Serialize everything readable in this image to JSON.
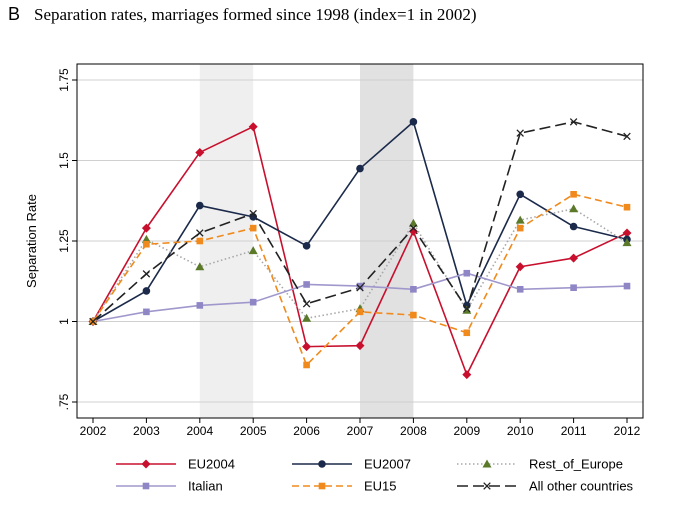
{
  "panel_label": "B",
  "chart_data": {
    "type": "line",
    "title": "Separation rates, marriages formed since 1998 (index=1 in 2002)",
    "xlabel": "",
    "ylabel": "Separation Rate",
    "x": [
      2002,
      2003,
      2004,
      2005,
      2006,
      2007,
      2008,
      2009,
      2010,
      2011,
      2012
    ],
    "x_tick_labels": [
      "2002",
      "2003",
      "2004",
      "2005",
      "2006",
      "2007",
      "2008",
      "2009",
      "2010",
      "2011",
      "2012"
    ],
    "y_ticks": [
      0.75,
      1,
      1.25,
      1.5,
      1.75
    ],
    "y_tick_labels": [
      ".75",
      "1",
      "1.25",
      "1.5",
      "1.75"
    ],
    "xlim": [
      2002,
      2012
    ],
    "ylim": [
      0.75,
      1.75
    ],
    "shaded_periods": [
      {
        "from": 2004,
        "to": 2005,
        "shade": "#efefef"
      },
      {
        "from": 2007,
        "to": 2008,
        "shade": "#e1e1e1"
      }
    ],
    "grid": "horizontal",
    "legend_position": "bottom",
    "series": [
      {
        "name": "EU2004",
        "color": "#c8102e",
        "dash": "solid",
        "marker": "diamond",
        "values": [
          1.0,
          1.29,
          1.525,
          1.605,
          0.922,
          0.925,
          1.28,
          0.835,
          1.17,
          1.197,
          1.275
        ]
      },
      {
        "name": "EU2007",
        "color": "#1b2a4a",
        "dash": "solid",
        "marker": "circle",
        "values": [
          1.0,
          1.095,
          1.36,
          1.325,
          1.235,
          1.475,
          1.62,
          1.05,
          1.395,
          1.295,
          1.255
        ]
      },
      {
        "name": "Rest_of_Europe",
        "color": "#a8a8a8",
        "markerColor": "#5a7a2a",
        "dash": "dotted",
        "marker": "triangle",
        "values": [
          1.0,
          1.255,
          1.17,
          1.22,
          1.01,
          1.04,
          1.305,
          1.035,
          1.315,
          1.35,
          1.245
        ]
      },
      {
        "name": "Italian",
        "color": "#a098cc",
        "markerColor": "#8f86c6",
        "dash": "solid",
        "marker": "square",
        "values": [
          1.0,
          1.03,
          1.05,
          1.06,
          1.115,
          1.11,
          1.1,
          1.15,
          1.1,
          1.105,
          1.11
        ]
      },
      {
        "name": "EU15",
        "color": "#f08a1c",
        "dash": "dashed",
        "marker": "square",
        "values": [
          1.0,
          1.24,
          1.25,
          1.29,
          0.865,
          1.03,
          1.02,
          0.965,
          1.29,
          1.395,
          1.355
        ]
      },
      {
        "name": "All other countries",
        "color": "#222222",
        "dash": "longdash",
        "marker": "x",
        "values": [
          1.0,
          1.148,
          1.275,
          1.335,
          1.055,
          1.105,
          1.29,
          1.04,
          1.585,
          1.62,
          1.575
        ]
      }
    ]
  }
}
